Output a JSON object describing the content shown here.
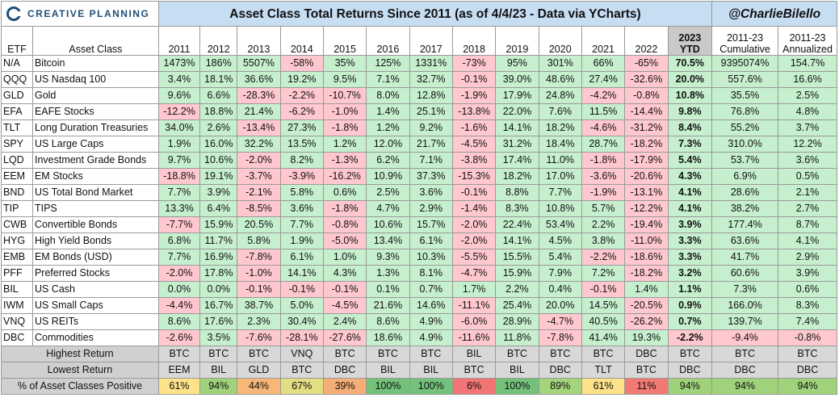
{
  "header": {
    "logo_text": "CREATIVE PLANNING",
    "title": "Asset Class Total Returns Since 2011 (as of 4/4/23 - Data via YCharts)",
    "handle": "@CharlieBilello"
  },
  "columns": {
    "etf": "ETF",
    "asset_class": "Asset Class",
    "years": [
      "2011",
      "2012",
      "2013",
      "2014",
      "2015",
      "2016",
      "2017",
      "2018",
      "2019",
      "2020",
      "2021",
      "2022"
    ],
    "ytd_year": "2023",
    "ytd_label": "YTD",
    "cumulative": [
      "2011-23",
      "Cumulative"
    ],
    "annualized": [
      "2011-23",
      "Annualized"
    ]
  },
  "rows": [
    {
      "etf": "N/A",
      "name": "Bitcoin",
      "values": [
        "1473%",
        "186%",
        "5507%",
        "-58%",
        "35%",
        "125%",
        "1331%",
        "-73%",
        "95%",
        "301%",
        "66%",
        "-65%"
      ],
      "ytd": "70.5%",
      "cum": "9395074%",
      "ann": "154.7%"
    },
    {
      "etf": "QQQ",
      "name": "US Nasdaq 100",
      "values": [
        "3.4%",
        "18.1%",
        "36.6%",
        "19.2%",
        "9.5%",
        "7.1%",
        "32.7%",
        "-0.1%",
        "39.0%",
        "48.6%",
        "27.4%",
        "-32.6%"
      ],
      "ytd": "20.0%",
      "cum": "557.6%",
      "ann": "16.6%"
    },
    {
      "etf": "GLD",
      "name": "Gold",
      "values": [
        "9.6%",
        "6.6%",
        "-28.3%",
        "-2.2%",
        "-10.7%",
        "8.0%",
        "12.8%",
        "-1.9%",
        "17.9%",
        "24.8%",
        "-4.2%",
        "-0.8%"
      ],
      "ytd": "10.8%",
      "cum": "35.5%",
      "ann": "2.5%"
    },
    {
      "etf": "EFA",
      "name": "EAFE Stocks",
      "values": [
        "-12.2%",
        "18.8%",
        "21.4%",
        "-6.2%",
        "-1.0%",
        "1.4%",
        "25.1%",
        "-13.8%",
        "22.0%",
        "7.6%",
        "11.5%",
        "-14.4%"
      ],
      "ytd": "9.8%",
      "cum": "76.8%",
      "ann": "4.8%"
    },
    {
      "etf": "TLT",
      "name": "Long Duration Treasuries",
      "values": [
        "34.0%",
        "2.6%",
        "-13.4%",
        "27.3%",
        "-1.8%",
        "1.2%",
        "9.2%",
        "-1.6%",
        "14.1%",
        "18.2%",
        "-4.6%",
        "-31.2%"
      ],
      "ytd": "8.4%",
      "cum": "55.2%",
      "ann": "3.7%"
    },
    {
      "etf": "SPY",
      "name": "US Large Caps",
      "values": [
        "1.9%",
        "16.0%",
        "32.2%",
        "13.5%",
        "1.2%",
        "12.0%",
        "21.7%",
        "-4.5%",
        "31.2%",
        "18.4%",
        "28.7%",
        "-18.2%"
      ],
      "ytd": "7.3%",
      "cum": "310.0%",
      "ann": "12.2%"
    },
    {
      "etf": "LQD",
      "name": "Investment Grade Bonds",
      "values": [
        "9.7%",
        "10.6%",
        "-2.0%",
        "8.2%",
        "-1.3%",
        "6.2%",
        "7.1%",
        "-3.8%",
        "17.4%",
        "11.0%",
        "-1.8%",
        "-17.9%"
      ],
      "ytd": "5.4%",
      "cum": "53.7%",
      "ann": "3.6%"
    },
    {
      "etf": "EEM",
      "name": "EM Stocks",
      "values": [
        "-18.8%",
        "19.1%",
        "-3.7%",
        "-3.9%",
        "-16.2%",
        "10.9%",
        "37.3%",
        "-15.3%",
        "18.2%",
        "17.0%",
        "-3.6%",
        "-20.6%"
      ],
      "ytd": "4.3%",
      "cum": "6.9%",
      "ann": "0.5%"
    },
    {
      "etf": "BND",
      "name": "US Total Bond Market",
      "values": [
        "7.7%",
        "3.9%",
        "-2.1%",
        "5.8%",
        "0.6%",
        "2.5%",
        "3.6%",
        "-0.1%",
        "8.8%",
        "7.7%",
        "-1.9%",
        "-13.1%"
      ],
      "ytd": "4.1%",
      "cum": "28.6%",
      "ann": "2.1%"
    },
    {
      "etf": "TIP",
      "name": "TIPS",
      "values": [
        "13.3%",
        "6.4%",
        "-8.5%",
        "3.6%",
        "-1.8%",
        "4.7%",
        "2.9%",
        "-1.4%",
        "8.3%",
        "10.8%",
        "5.7%",
        "-12.2%"
      ],
      "ytd": "4.1%",
      "cum": "38.2%",
      "ann": "2.7%"
    },
    {
      "etf": "CWB",
      "name": "Convertible Bonds",
      "values": [
        "-7.7%",
        "15.9%",
        "20.5%",
        "7.7%",
        "-0.8%",
        "10.6%",
        "15.7%",
        "-2.0%",
        "22.4%",
        "53.4%",
        "2.2%",
        "-19.4%"
      ],
      "ytd": "3.9%",
      "cum": "177.4%",
      "ann": "8.7%"
    },
    {
      "etf": "HYG",
      "name": "High Yield Bonds",
      "values": [
        "6.8%",
        "11.7%",
        "5.8%",
        "1.9%",
        "-5.0%",
        "13.4%",
        "6.1%",
        "-2.0%",
        "14.1%",
        "4.5%",
        "3.8%",
        "-11.0%"
      ],
      "ytd": "3.3%",
      "cum": "63.6%",
      "ann": "4.1%"
    },
    {
      "etf": "EMB",
      "name": "EM Bonds (USD)",
      "values": [
        "7.7%",
        "16.9%",
        "-7.8%",
        "6.1%",
        "1.0%",
        "9.3%",
        "10.3%",
        "-5.5%",
        "15.5%",
        "5.4%",
        "-2.2%",
        "-18.6%"
      ],
      "ytd": "3.3%",
      "cum": "41.7%",
      "ann": "2.9%"
    },
    {
      "etf": "PFF",
      "name": "Preferred Stocks",
      "values": [
        "-2.0%",
        "17.8%",
        "-1.0%",
        "14.1%",
        "4.3%",
        "1.3%",
        "8.1%",
        "-4.7%",
        "15.9%",
        "7.9%",
        "7.2%",
        "-18.2%"
      ],
      "ytd": "3.2%",
      "cum": "60.6%",
      "ann": "3.9%"
    },
    {
      "etf": "BIL",
      "name": "US Cash",
      "values": [
        "0.0%",
        "0.0%",
        "-0.1%",
        "-0.1%",
        "-0.1%",
        "0.1%",
        "0.7%",
        "1.7%",
        "2.2%",
        "0.4%",
        "-0.1%",
        "1.4%"
      ],
      "ytd": "1.1%",
      "cum": "7.3%",
      "ann": "0.6%"
    },
    {
      "etf": "IWM",
      "name": "US Small Caps",
      "values": [
        "-4.4%",
        "16.7%",
        "38.7%",
        "5.0%",
        "-4.5%",
        "21.6%",
        "14.6%",
        "-11.1%",
        "25.4%",
        "20.0%",
        "14.5%",
        "-20.5%"
      ],
      "ytd": "0.9%",
      "cum": "166.0%",
      "ann": "8.3%"
    },
    {
      "etf": "VNQ",
      "name": "US REITs",
      "values": [
        "8.6%",
        "17.6%",
        "2.3%",
        "30.4%",
        "2.4%",
        "8.6%",
        "4.9%",
        "-6.0%",
        "28.9%",
        "-4.7%",
        "40.5%",
        "-26.2%"
      ],
      "ytd": "0.7%",
      "cum": "139.7%",
      "ann": "7.4%"
    },
    {
      "etf": "DBC",
      "name": "Commodities",
      "values": [
        "-2.6%",
        "3.5%",
        "-7.6%",
        "-28.1%",
        "-27.6%",
        "18.6%",
        "4.9%",
        "-11.6%",
        "11.8%",
        "-7.8%",
        "41.4%",
        "19.3%"
      ],
      "ytd": "-2.2%",
      "cum": "-9.4%",
      "ann": "-0.8%"
    }
  ],
  "summary": [
    {
      "label": "Highest Return",
      "values": [
        "BTC",
        "BTC",
        "BTC",
        "VNQ",
        "BTC",
        "BTC",
        "BTC",
        "BIL",
        "BTC",
        "BTC",
        "BTC",
        "DBC",
        "BTC",
        "BTC",
        "BTC"
      ]
    },
    {
      "label": "Lowest Return",
      "values": [
        "EEM",
        "BIL",
        "GLD",
        "BTC",
        "DBC",
        "BIL",
        "BIL",
        "BTC",
        "BIL",
        "DBC",
        "TLT",
        "BTC",
        "DBC",
        "DBC",
        "DBC"
      ]
    },
    {
      "label": "% of Asset Classes Positive",
      "values": [
        "61%",
        "94%",
        "44%",
        "67%",
        "39%",
        "100%",
        "100%",
        "6%",
        "100%",
        "89%",
        "61%",
        "11%",
        "94%",
        "94%",
        "94%"
      ],
      "colors": [
        "#fde28a",
        "#9fd27a",
        "#f7b778",
        "#e2de82",
        "#f6ae78",
        "#74c17b",
        "#74c17b",
        "#f27474",
        "#74c17b",
        "#a4d47c",
        "#fde28a",
        "#f27a74",
        "#9fd27a",
        "#9fd27a",
        "#9fd27a"
      ]
    }
  ],
  "colors": {
    "positive": "#c6efce",
    "negative": "#ffc7ce",
    "title_bg": "#c6ddf2",
    "ytd_header_bg": "#c9c9c9",
    "summary_bg": "#d8d8d8",
    "logo": "#1f4e79"
  },
  "icons": {
    "logo": "creative-planning-logo-icon"
  }
}
